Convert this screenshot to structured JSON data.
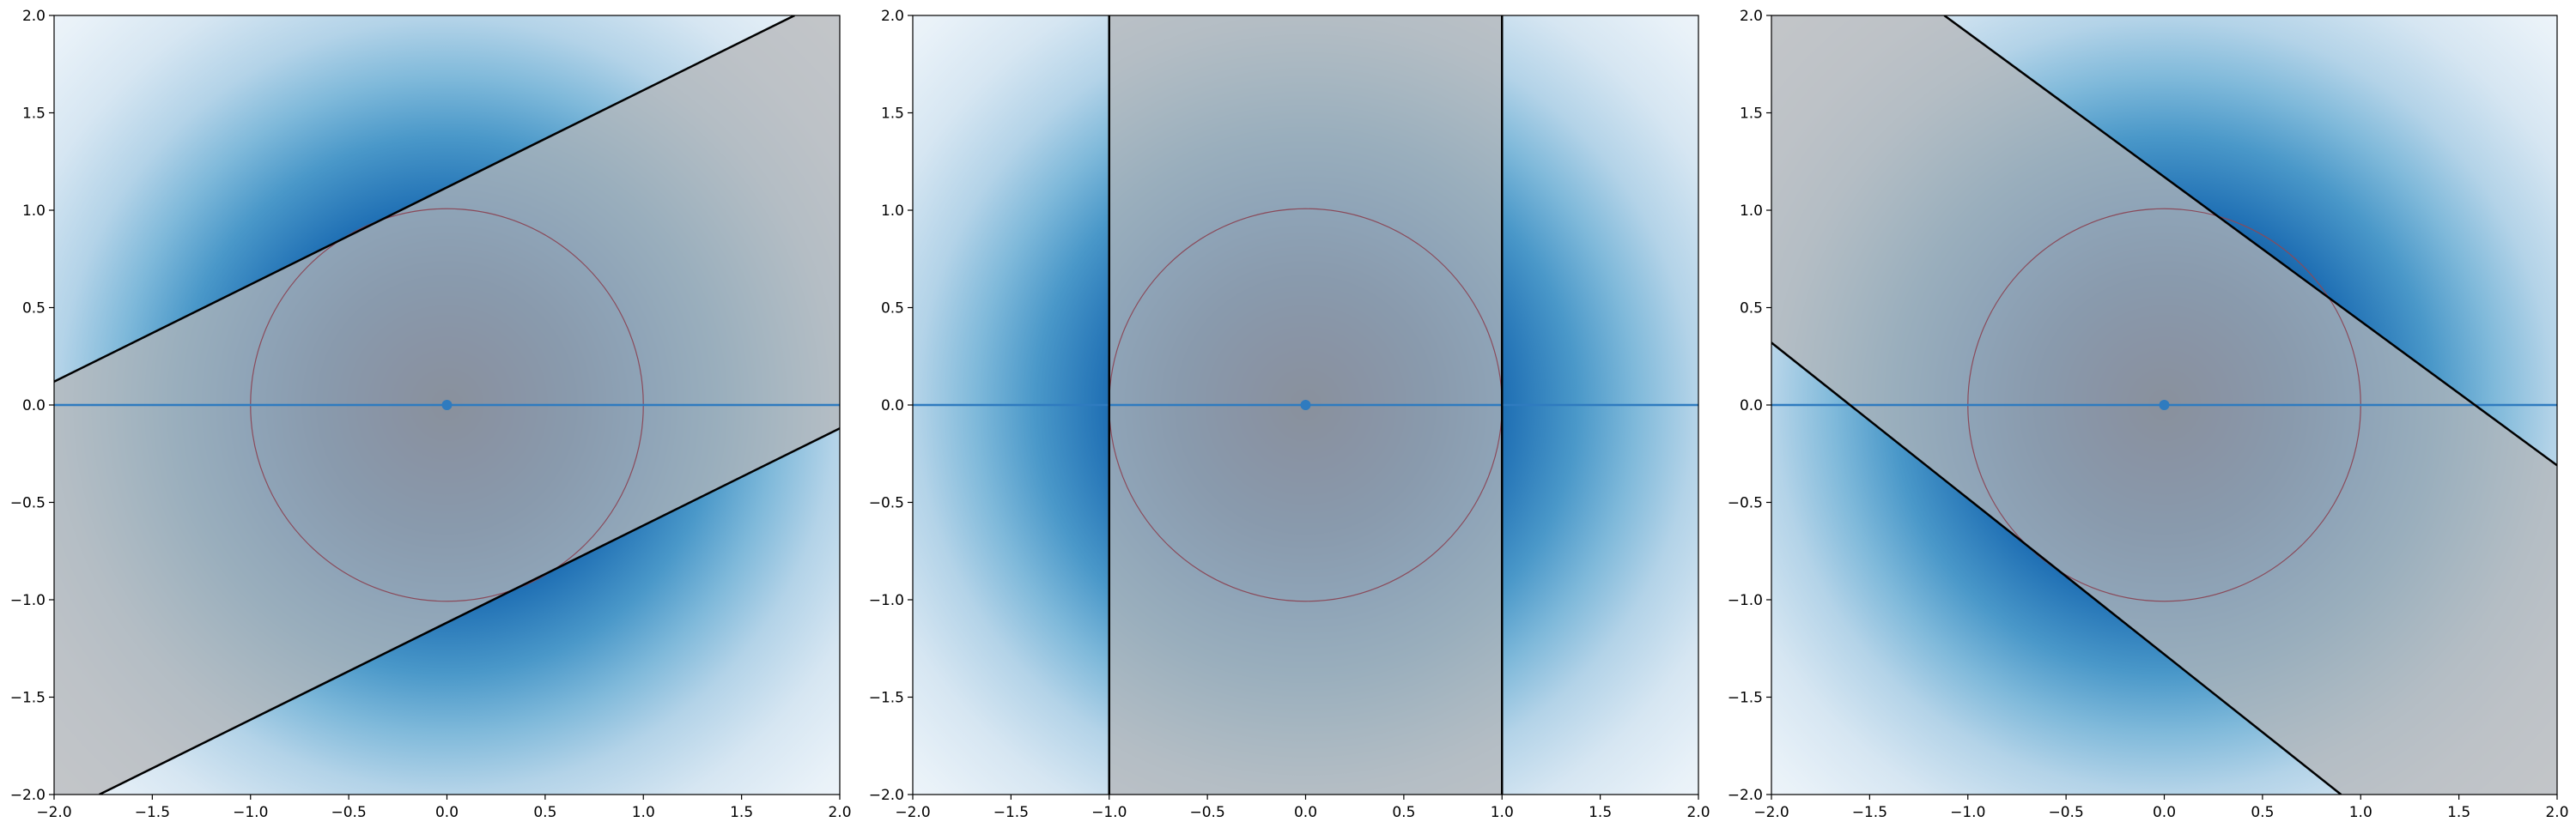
{
  "chart_data": [
    {
      "type": "heatmap",
      "panel": "left",
      "xlim": [
        -2,
        2
      ],
      "ylim": [
        -2,
        2
      ],
      "xticks": [
        "−2.0",
        "−1.5",
        "−1.0",
        "−0.5",
        "0.0",
        "0.5",
        "1.0",
        "1.5",
        "2.0"
      ],
      "yticks": [
        "−2.0",
        "−1.5",
        "−1.0",
        "−0.5",
        "0.0",
        "0.5",
        "1.0",
        "1.5",
        "2.0"
      ],
      "colormap": "Blues",
      "field": "radial gaussian centered at (0, 0)",
      "circle": {
        "center": [
          0,
          0
        ],
        "radius": 1.0,
        "color": "#8a4a5a"
      },
      "point": {
        "x": 0,
        "y": 0,
        "color": "#2f7bbf"
      },
      "horizontal_line": {
        "y": 0,
        "color": "#2f7bbf"
      },
      "boundary_lines": [
        {
          "x": [
            -2.0,
            1.77
          ],
          "y": [
            0.12,
            2.0
          ]
        },
        {
          "x": [
            -1.77,
            2.0
          ],
          "y": [
            -2.0,
            -0.12
          ]
        }
      ],
      "shaded_band_color": "#b4b6b8"
    },
    {
      "type": "heatmap",
      "panel": "center",
      "xlim": [
        -2,
        2
      ],
      "ylim": [
        -2,
        2
      ],
      "xticks": [
        "−2.0",
        "−1.5",
        "−1.0",
        "−0.5",
        "0.0",
        "0.5",
        "1.0",
        "1.5",
        "2.0"
      ],
      "yticks": [
        "−2.0",
        "−1.5",
        "−1.0",
        "−0.5",
        "0.0",
        "0.5",
        "1.0",
        "1.5",
        "2.0"
      ],
      "colormap": "Blues",
      "field": "radial gaussian centered at (0, 0)",
      "circle": {
        "center": [
          0,
          0
        ],
        "radius": 1.0,
        "color": "#8a4a5a"
      },
      "point": {
        "x": 0,
        "y": 0,
        "color": "#2f7bbf"
      },
      "horizontal_line": {
        "y": 0,
        "color": "#2f7bbf"
      },
      "boundary_lines": [
        {
          "x": [
            -1.0,
            -1.0
          ],
          "y": [
            -2.0,
            2.0
          ]
        },
        {
          "x": [
            1.0,
            1.0
          ],
          "y": [
            -2.0,
            2.0
          ]
        }
      ],
      "shaded_band_color": "#b4b6b8"
    },
    {
      "type": "heatmap",
      "panel": "right",
      "xlim": [
        -2,
        2
      ],
      "ylim": [
        -2,
        2
      ],
      "xticks": [
        "−2.0",
        "−1.5",
        "−1.0",
        "−0.5",
        "0.0",
        "0.5",
        "1.0",
        "1.5",
        "2.0"
      ],
      "yticks": [
        "−2.0",
        "−1.5",
        "−1.0",
        "−0.5",
        "0.0",
        "0.5",
        "1.0",
        "1.5",
        "2.0"
      ],
      "colormap": "Blues",
      "field": "radial gaussian centered at (0, 0)",
      "circle": {
        "center": [
          0,
          0
        ],
        "radius": 1.0,
        "color": "#8a4a5a"
      },
      "point": {
        "x": 0,
        "y": 0,
        "color": "#2f7bbf"
      },
      "horizontal_line": {
        "y": 0,
        "color": "#2f7bbf"
      },
      "boundary_lines": [
        {
          "x": [
            -1.12,
            2.0
          ],
          "y": [
            2.0,
            -0.31
          ]
        },
        {
          "x": [
            -2.0,
            0.9
          ],
          "y": [
            0.32,
            -2.0
          ]
        }
      ],
      "shaded_band_color": "#b4b6b8"
    }
  ]
}
